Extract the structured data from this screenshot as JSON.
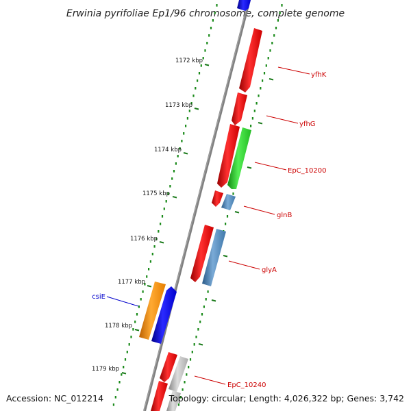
{
  "title": "Erwinia pyrifoliae Ep1/96 chromosome, complete genome",
  "footer": {
    "accession": "Accession: NC_012214",
    "summary": "Topology: circular; Length: 4,026,322 bp; Genes: 3,742"
  },
  "colors": {
    "backbone": "#808080",
    "tick_mark": "#1a7a1a",
    "dotted_track": "#1a8a1a",
    "label_red": "#cc0000",
    "label_blue": "#0000cc"
  },
  "kbp_labels": [
    "1172 kbp",
    "1173 kbp",
    "1174 kbp",
    "1175 kbp",
    "1176 kbp",
    "1177 kbp",
    "1178 kbp",
    "1179 kbp"
  ],
  "gene_labels": [
    {
      "text": "yfhK",
      "color": "#cc0000"
    },
    {
      "text": "yfhG",
      "color": "#cc0000"
    },
    {
      "text": "EpC_10200",
      "color": "#cc0000"
    },
    {
      "text": "glnB",
      "color": "#cc0000"
    },
    {
      "text": "glyA",
      "color": "#cc0000"
    },
    {
      "text": "csiE",
      "color": "#0000cc"
    },
    {
      "text": "EpC_10240",
      "color": "#cc0000"
    }
  ],
  "features": [
    {
      "name": "feature-top-blue",
      "color": "#0000ee",
      "track": 1
    },
    {
      "name": "feature-yfhK",
      "color": "#ee0000",
      "track": 1
    },
    {
      "name": "feature-yfhG",
      "color": "#ee0000",
      "track": 1
    },
    {
      "name": "feature-red-1174",
      "color": "#ee0000",
      "track": 1
    },
    {
      "name": "feature-EpC_10200",
      "color": "#22cc22",
      "track": 2
    },
    {
      "name": "feature-red-1175",
      "color": "#ee0000",
      "track": 1
    },
    {
      "name": "feature-glnB",
      "color": "#4682b4",
      "track": 2
    },
    {
      "name": "feature-red-1176",
      "color": "#ee0000",
      "track": 1
    },
    {
      "name": "feature-glyA",
      "color": "#4682b4",
      "track": 2
    },
    {
      "name": "feature-orange-csiE",
      "color": "#ff8c00",
      "track": -2
    },
    {
      "name": "feature-csiE",
      "color": "#0000ee",
      "track": -1
    },
    {
      "name": "feature-red-1179",
      "color": "#ee0000",
      "track": 1
    },
    {
      "name": "feature-gray-EpC_10240",
      "color": "#b0b0b0",
      "track": 2
    },
    {
      "name": "feature-red-bottom",
      "color": "#ee0000",
      "track": 1
    },
    {
      "name": "feature-gray-bottom",
      "color": "#b0b0b0",
      "track": 2
    }
  ]
}
